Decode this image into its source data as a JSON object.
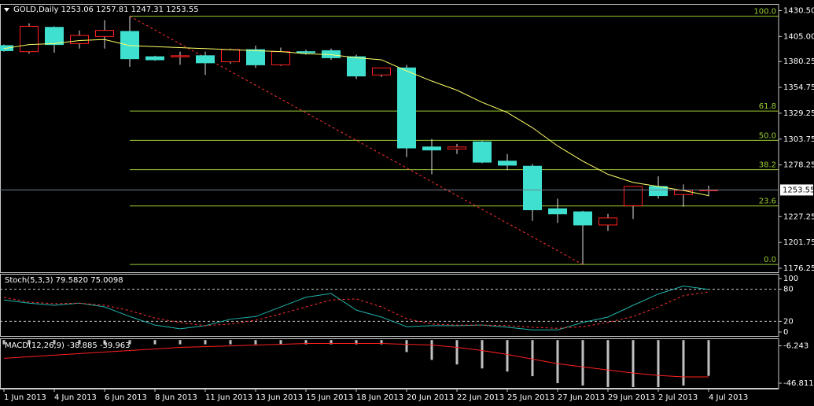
{
  "chart_data": [
    {
      "type": "candlestick",
      "title": "GOLD,Daily",
      "categories": [
        "1 Jun 2013",
        null,
        "4 Jun 2013",
        null,
        "6 Jun 2013",
        null,
        "8 Jun 2013",
        null,
        "11 Jun 2013",
        null,
        "13 Jun 2013",
        null,
        "15 Jun 2013",
        null,
        "18 Jun 2013",
        null,
        "20 Jun 2013",
        null,
        "22 Jun 2013",
        null,
        "25 Jun 2013",
        null,
        "27 Jun 2013",
        null,
        "29 Jun 2013",
        null,
        "2 Jul 2013",
        null,
        "4 Jul 2013"
      ],
      "open": [
        1396,
        1390,
        1414,
        1398,
        1405,
        1410,
        1385,
        1385,
        1386,
        1380,
        1392,
        1377,
        1390,
        1391,
        1385,
        1367,
        1374,
        1296,
        1294,
        1301,
        1282,
        1277,
        1235,
        1232,
        1219,
        1238,
        1257,
        1249,
        1253.06
      ],
      "high": [
        1397,
        1418,
        1415,
        1411,
        1421,
        1425,
        1386,
        1390,
        1390,
        1393,
        1396,
        1394,
        1392,
        1393,
        1387,
        1374,
        1377,
        1304,
        1299,
        1302,
        1289,
        1279,
        1245,
        1233,
        1230,
        1257,
        1267,
        1259,
        1257.81
      ],
      "low": [
        1390,
        1388,
        1389,
        1393,
        1393,
        1375,
        1381,
        1377,
        1367,
        1378,
        1374,
        1376,
        1387,
        1382,
        1363,
        1365,
        1286,
        1269,
        1289,
        1280,
        1273,
        1223,
        1221,
        1180,
        1213,
        1225,
        1245,
        1237,
        1247.31
      ],
      "close": [
        1391,
        1415,
        1397,
        1406,
        1411,
        1383,
        1382,
        1386,
        1379,
        1392,
        1377,
        1390,
        1389,
        1384,
        1366,
        1374,
        1295,
        1293,
        1296,
        1281,
        1278,
        1234,
        1230,
        1219,
        1226,
        1257,
        1248,
        1253,
        1253.55
      ],
      "up_color": "#ff2020",
      "down_color": "#40e0d0",
      "wick_color": "#e0e0e0",
      "moving_average": {
        "color": "#ffff66",
        "values": [
          1393,
          1397,
          1398,
          1401,
          1402,
          1396,
          1395,
          1394,
          1393,
          1392,
          1391,
          1390,
          1388,
          1387,
          1384,
          1382,
          1371,
          1361,
          1352,
          1340,
          1330,
          1315,
          1297,
          1282,
          1269,
          1261,
          1257,
          1253,
          1248
        ]
      },
      "fibo": {
        "high": 1425,
        "low": 1180,
        "color": "#9acd32",
        "trend_color": "#ff3030",
        "levels": [
          {
            "value": 100,
            "label": "100.0"
          },
          {
            "value": 61.8,
            "label": "61.8"
          },
          {
            "value": 50,
            "label": "50.0"
          },
          {
            "value": 38.2,
            "label": "38.2"
          },
          {
            "value": 23.6,
            "label": "23.6"
          },
          {
            "value": 0,
            "label": "0.0"
          }
        ]
      },
      "price_line_color": "#708090",
      "ylim": [
        1171.6,
        1437.1
      ],
      "yticks": [
        {
          "value": 1430.5,
          "label": "1430.50"
        },
        {
          "value": 1405,
          "label": "1405.00"
        },
        1380.25,
        1354.75,
        1329.25,
        1303.75,
        1278.25,
        1227.25,
        1201.75,
        1176.25
      ]
    },
    {
      "type": "line",
      "title": "Stoch(5,3,3)",
      "readout": [
        {
          "value": 79.582,
          "label": "79.5820"
        },
        {
          "value": 75.0098,
          "label": "75.0098"
        }
      ],
      "series": [
        {
          "color": "#20b2aa",
          "dash": false,
          "values": [
            60,
            54,
            50,
            54,
            47,
            29,
            13,
            6,
            12,
            24,
            29,
            47,
            65,
            72,
            41,
            28,
            10,
            12,
            12,
            13,
            9,
            4,
            4,
            18,
            28,
            50,
            71,
            86,
            79.582
          ]
        },
        {
          "color": "#ff3030",
          "dash": true,
          "values": [
            65,
            56,
            53,
            54,
            50,
            40,
            26,
            18,
            12,
            15,
            22,
            34,
            47,
            60,
            62,
            47,
            25,
            15,
            13,
            13,
            12,
            9,
            7,
            10,
            18,
            29,
            47,
            68,
            75.0098
          ]
        }
      ],
      "levels": [
        80,
        20
      ],
      "ylim": [
        -8.8,
        108.8
      ],
      "yticks": [
        100,
        80,
        20,
        0
      ]
    },
    {
      "type": "macd",
      "title": "MACD(12,26,9)",
      "series": [
        {
          "kind": "bar",
          "color": "#c0c0c0",
          "values": [
            -4.6,
            -4.6,
            -4.6,
            -4.6,
            -4.6,
            -4.6,
            -4.6,
            -4.6,
            -4.6,
            -4.6,
            -4.6,
            -4.6,
            -4.6,
            -4.6,
            -4.6,
            -4.6,
            -13,
            -21.5,
            -26.5,
            -30.8,
            -34.2,
            -39.2,
            -46.8,
            -49.4,
            -51.1,
            -51.1,
            -51.1,
            -49.4,
            -38.885
          ]
        },
        {
          "kind": "line",
          "color": "#ff2020",
          "values": [
            -19.8,
            -18.1,
            -16.4,
            -14.7,
            -13,
            -11.3,
            -9.6,
            -7.9,
            -7.1,
            -6.3,
            -5.4,
            -4.6,
            -3.7,
            -3.7,
            -3.7,
            -3.7,
            -4.6,
            -5.4,
            -7.9,
            -11.3,
            -15.6,
            -20.6,
            -25.7,
            -29.1,
            -32.5,
            -35.8,
            -38.4,
            -40,
            -39.963
          ]
        }
      ],
      "ylim": [
        -52.8,
        1.9
      ],
      "yticks": [
        -6.243,
        -46.811
      ]
    }
  ]
}
